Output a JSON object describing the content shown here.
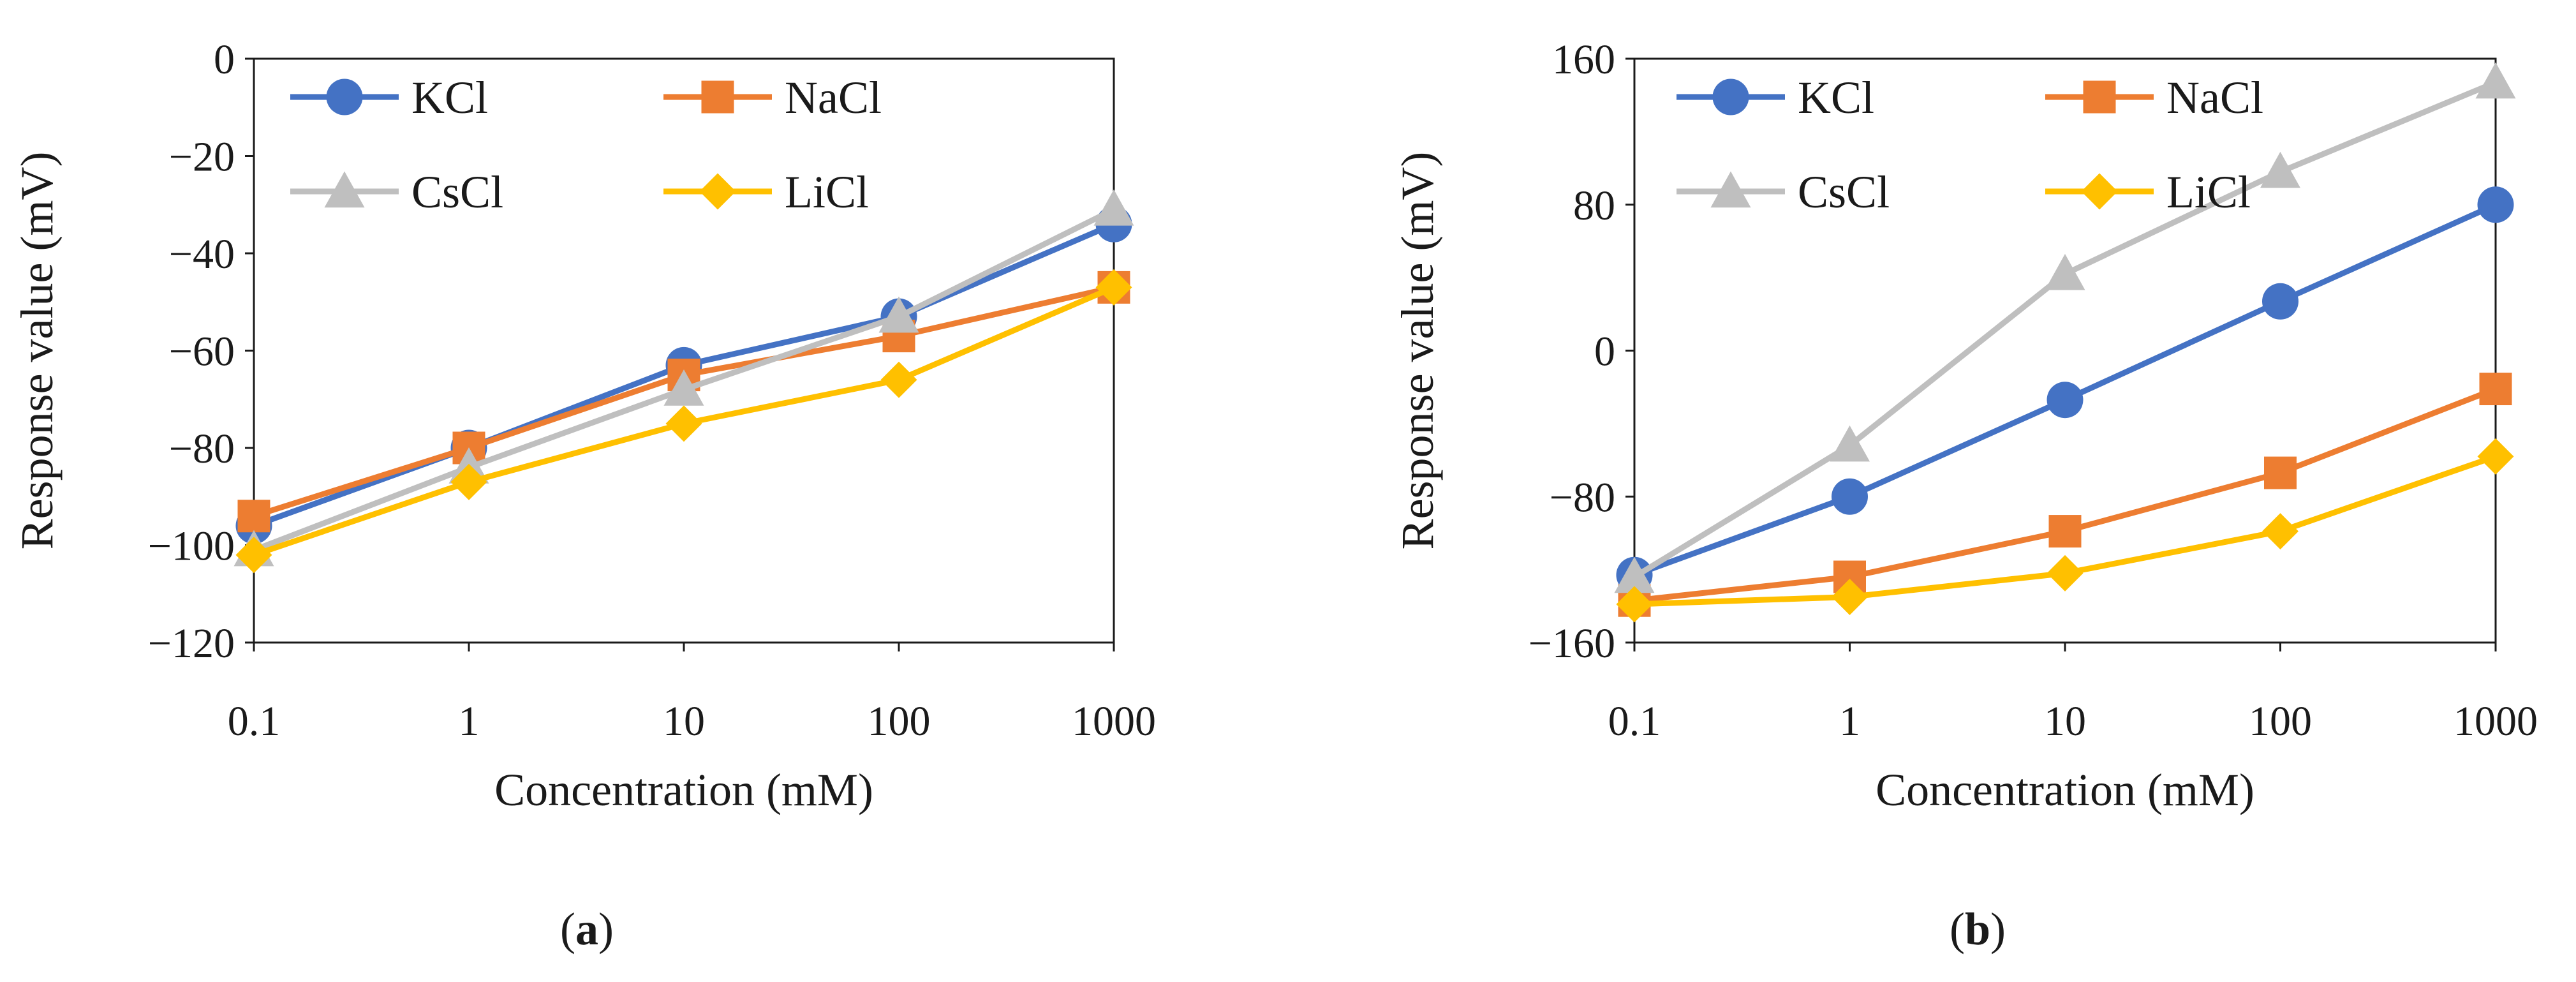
{
  "series_colors": {
    "KCl": "#4472C4",
    "NaCl": "#ED7D31",
    "CsCl": "#BFBFBF",
    "LiCl": "#FFC000"
  },
  "chart_data": [
    {
      "type": "line",
      "panel_label": {
        "open": "(",
        "letter": "a",
        "close": ")"
      },
      "title": "",
      "xlabel": "Concentration (mM)",
      "ylabel": "Response value (mV)",
      "x": [
        "0.1",
        "1",
        "10",
        "100",
        "1000"
      ],
      "ylim": [
        -120,
        0
      ],
      "yticks": [
        0,
        -20,
        -40,
        -60,
        -80,
        -100,
        -120
      ],
      "ytick_labels": [
        "0",
        "−20",
        "−40",
        "−60",
        "−80",
        "−100",
        "−120"
      ],
      "grid": false,
      "legend_placement": "top",
      "series": [
        {
          "name": "KCl",
          "marker": "circle",
          "values": [
            -96,
            -80,
            -63,
            -53,
            -34
          ]
        },
        {
          "name": "NaCl",
          "marker": "square",
          "values": [
            -94,
            -80,
            -65,
            -57,
            -47
          ]
        },
        {
          "name": "CsCl",
          "marker": "triangle",
          "values": [
            -101,
            -84,
            -68,
            -53,
            -31
          ]
        },
        {
          "name": "LiCl",
          "marker": "diamond",
          "values": [
            -102,
            -87,
            -75,
            -66,
            -47
          ]
        }
      ]
    },
    {
      "type": "line",
      "panel_label": {
        "open": "(",
        "letter": "b",
        "close": ")"
      },
      "title": "",
      "xlabel": "Concentration (mM)",
      "ylabel": "Response value (mV)",
      "x": [
        "0.1",
        "1",
        "10",
        "100",
        "1000"
      ],
      "ylim": [
        -160,
        160
      ],
      "yticks": [
        160,
        80,
        0,
        -80,
        -160
      ],
      "ytick_labels": [
        "160",
        "80",
        "0",
        "−80",
        "−160"
      ],
      "grid": false,
      "legend_placement": "top",
      "series": [
        {
          "name": "KCl",
          "marker": "circle",
          "values": [
            -123,
            -80,
            -27,
            27,
            80
          ]
        },
        {
          "name": "NaCl",
          "marker": "square",
          "values": [
            -137,
            -124,
            -99,
            -67,
            -21
          ]
        },
        {
          "name": "CsCl",
          "marker": "triangle",
          "values": [
            -124,
            -52,
            42,
            98,
            147
          ]
        },
        {
          "name": "LiCl",
          "marker": "diamond",
          "values": [
            -139,
            -135,
            -122,
            -99,
            -58
          ]
        }
      ]
    }
  ]
}
